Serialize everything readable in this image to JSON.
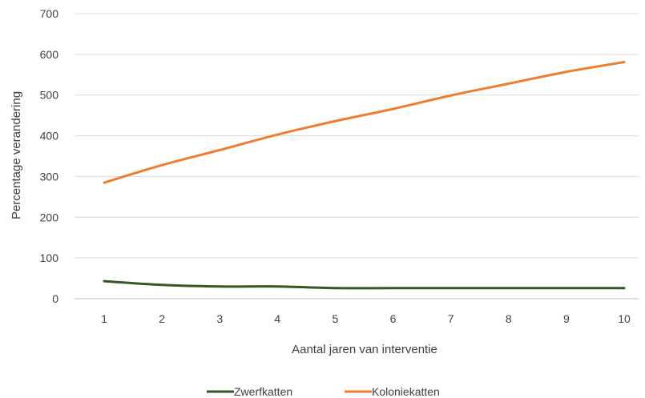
{
  "chart_data": {
    "type": "line",
    "x": [
      1,
      2,
      3,
      4,
      5,
      6,
      7,
      8,
      9,
      10
    ],
    "xlabel": "Aantal jaren van interventie",
    "ylabel": "Percentage verandering",
    "ylim": [
      0,
      700
    ],
    "yticks": [
      0,
      100,
      200,
      300,
      400,
      500,
      600,
      700
    ],
    "grid": true,
    "legend_position": "bottom",
    "series": [
      {
        "name": "Zwerfkatten",
        "color": "#375623",
        "values": [
          43,
          34,
          30,
          30,
          26,
          26,
          26,
          26,
          26,
          26
        ]
      },
      {
        "name": "Koloniekatten",
        "color": "#ED7D31",
        "values": [
          285,
          328,
          365,
          403,
          436,
          466,
          499,
          528,
          557,
          581
        ]
      }
    ]
  }
}
